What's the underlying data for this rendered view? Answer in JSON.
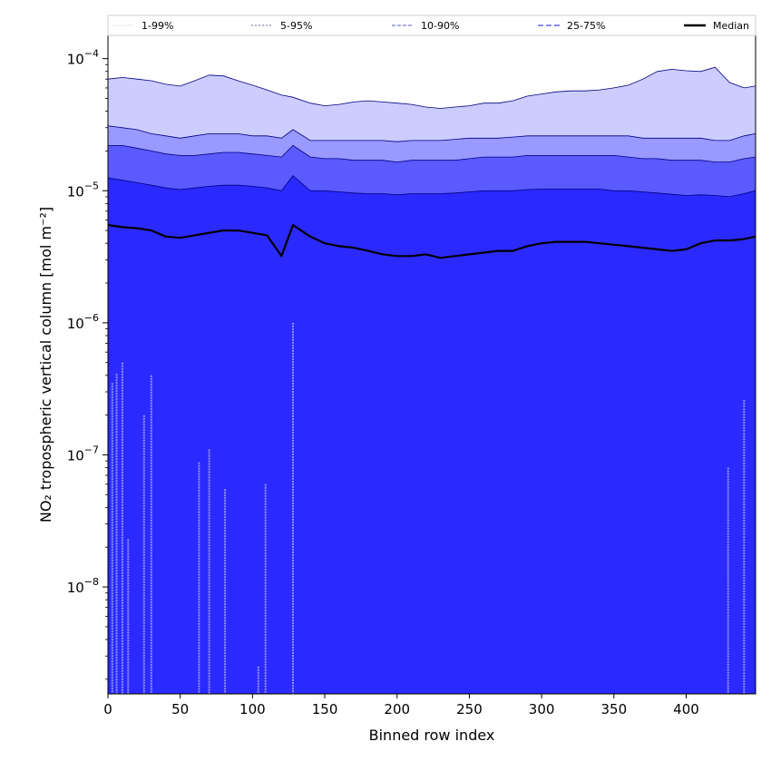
{
  "chart_data": {
    "type": "area",
    "title": "",
    "xlabel": "Binned row index",
    "ylabel": "NO₂ tropospheric vertical column [mol m⁻²]",
    "xlim": [
      0,
      448
    ],
    "ylim": [
      1.55e-09,
      0.00015
    ],
    "yscale": "log",
    "grid": false,
    "legend_position": "top",
    "x_ticks": [
      {
        "value": 0,
        "label": "0"
      },
      {
        "value": 50,
        "label": "50"
      },
      {
        "value": 100,
        "label": "100"
      },
      {
        "value": 150,
        "label": "150"
      },
      {
        "value": 200,
        "label": "200"
      },
      {
        "value": 250,
        "label": "250"
      },
      {
        "value": 300,
        "label": "300"
      },
      {
        "value": 350,
        "label": "350"
      },
      {
        "value": 400,
        "label": "400"
      }
    ],
    "y_ticks": [
      {
        "value": 1e-08,
        "base": "10",
        "exp": "−8"
      },
      {
        "value": 1e-07,
        "base": "10",
        "exp": "−7"
      },
      {
        "value": 1e-06,
        "base": "10",
        "exp": "−6"
      },
      {
        "value": 1e-05,
        "base": "10",
        "exp": "−5"
      },
      {
        "value": 0.0001,
        "base": "10",
        "exp": "−4"
      }
    ],
    "x": [
      0,
      10,
      20,
      30,
      40,
      50,
      60,
      70,
      80,
      90,
      100,
      110,
      120,
      128,
      140,
      150,
      160,
      170,
      180,
      190,
      200,
      210,
      220,
      230,
      240,
      250,
      260,
      270,
      280,
      290,
      300,
      310,
      320,
      330,
      340,
      350,
      360,
      370,
      380,
      390,
      400,
      410,
      420,
      430,
      440,
      448
    ],
    "series": [
      {
        "name": "1-99%",
        "kind": "band",
        "color": "#ccccff",
        "line_color": "#d0d0d0",
        "dash": "1,2",
        "lower": [
          1.55e-09,
          1.55e-09,
          1.55e-09,
          1.55e-09,
          1.55e-09,
          1.55e-09,
          1.55e-09,
          1.55e-09,
          1.55e-09,
          1.55e-09,
          1.55e-09,
          1.55e-09,
          1.55e-09,
          1.55e-09,
          1.55e-09,
          1.55e-09,
          1.55e-09,
          1.55e-09,
          1.55e-09,
          1.55e-09,
          1.55e-09,
          1.55e-09,
          1.55e-09,
          1.55e-09,
          1.55e-09,
          1.55e-09,
          1.55e-09,
          1.55e-09,
          1.55e-09,
          1.55e-09,
          1.55e-09,
          1.55e-09,
          1.55e-09,
          1.55e-09,
          1.55e-09,
          1.55e-09,
          1.55e-09,
          1.55e-09,
          1.55e-09,
          1.55e-09,
          1.55e-09,
          1.55e-09,
          1.55e-09,
          1.55e-09,
          1.55e-09,
          1.55e-09
        ],
        "upper": [
          7e-05,
          7.2e-05,
          7e-05,
          6.8e-05,
          6.4e-05,
          6.2e-05,
          6.8e-05,
          7.5e-05,
          7.4e-05,
          6.8e-05,
          6.3e-05,
          5.8e-05,
          5.3e-05,
          5.1e-05,
          4.6e-05,
          4.4e-05,
          4.5e-05,
          4.7e-05,
          4.8e-05,
          4.7e-05,
          4.6e-05,
          4.5e-05,
          4.3e-05,
          4.2e-05,
          4.3e-05,
          4.4e-05,
          4.6e-05,
          4.6e-05,
          4.8e-05,
          5.2e-05,
          5.4e-05,
          5.6e-05,
          5.7e-05,
          5.7e-05,
          5.8e-05,
          6e-05,
          6.3e-05,
          7e-05,
          8e-05,
          8.3e-05,
          8.1e-05,
          8e-05,
          8.6e-05,
          6.6e-05,
          6e-05,
          6.2e-05
        ]
      },
      {
        "name": "5-95%",
        "kind": "band",
        "color": "#9999ff",
        "line_color": "#8888bb",
        "dash": "2,2",
        "lower": [
          1.55e-09,
          1.55e-09,
          1.55e-09,
          1.55e-09,
          1.55e-09,
          1.55e-09,
          1.55e-09,
          1.55e-09,
          1.55e-09,
          1.55e-09,
          1.55e-09,
          1.55e-09,
          1.55e-09,
          1.55e-09,
          1.55e-09,
          1.55e-09,
          1.55e-09,
          1.55e-09,
          1.55e-09,
          1.55e-09,
          1.55e-09,
          1.55e-09,
          1.55e-09,
          1.55e-09,
          1.55e-09,
          1.55e-09,
          1.55e-09,
          1.55e-09,
          1.55e-09,
          1.55e-09,
          1.55e-09,
          1.55e-09,
          1.55e-09,
          1.55e-09,
          1.55e-09,
          1.55e-09,
          1.55e-09,
          1.55e-09,
          1.55e-09,
          1.55e-09,
          1.55e-09,
          1.55e-09,
          1.55e-09,
          1.55e-09,
          1.55e-09,
          1.55e-09
        ],
        "upper": [
          3.1e-05,
          3e-05,
          2.9e-05,
          2.7e-05,
          2.6e-05,
          2.5e-05,
          2.6e-05,
          2.7e-05,
          2.7e-05,
          2.7e-05,
          2.6e-05,
          2.6e-05,
          2.5e-05,
          2.9e-05,
          2.4e-05,
          2.4e-05,
          2.4e-05,
          2.4e-05,
          2.4e-05,
          2.4e-05,
          2.35e-05,
          2.4e-05,
          2.4e-05,
          2.4e-05,
          2.45e-05,
          2.5e-05,
          2.5e-05,
          2.5e-05,
          2.55e-05,
          2.6e-05,
          2.6e-05,
          2.6e-05,
          2.6e-05,
          2.6e-05,
          2.6e-05,
          2.6e-05,
          2.6e-05,
          2.5e-05,
          2.5e-05,
          2.5e-05,
          2.5e-05,
          2.5e-05,
          2.4e-05,
          2.4e-05,
          2.6e-05,
          2.7e-05
        ]
      },
      {
        "name": "10-90%",
        "kind": "band",
        "color": "#5a5aff",
        "line_color": "#7777dd",
        "dash": "4,2",
        "lower": [
          1.55e-09,
          1.55e-09,
          1.55e-09,
          1.55e-09,
          1.55e-09,
          1.55e-09,
          1.55e-09,
          1.55e-09,
          1.55e-09,
          1.55e-09,
          1.55e-09,
          1.55e-09,
          1.55e-09,
          1.55e-09,
          1.55e-09,
          1.55e-09,
          1.55e-09,
          1.55e-09,
          1.55e-09,
          1.55e-09,
          1.55e-09,
          1.55e-09,
          1.55e-09,
          1.55e-09,
          1.55e-09,
          1.55e-09,
          1.55e-09,
          1.55e-09,
          1.55e-09,
          1.55e-09,
          1.55e-09,
          1.55e-09,
          1.55e-09,
          1.55e-09,
          1.55e-09,
          1.55e-09,
          1.55e-09,
          1.55e-09,
          1.55e-09,
          1.55e-09,
          1.55e-09,
          1.55e-09,
          1.55e-09,
          1.55e-09,
          1.55e-09,
          1.55e-09
        ],
        "upper": [
          2.2e-05,
          2.2e-05,
          2.1e-05,
          2e-05,
          1.9e-05,
          1.85e-05,
          1.85e-05,
          1.9e-05,
          1.95e-05,
          1.95e-05,
          1.9e-05,
          1.85e-05,
          1.8e-05,
          2.2e-05,
          1.8e-05,
          1.75e-05,
          1.75e-05,
          1.7e-05,
          1.7e-05,
          1.7e-05,
          1.65e-05,
          1.7e-05,
          1.7e-05,
          1.7e-05,
          1.7e-05,
          1.75e-05,
          1.8e-05,
          1.8e-05,
          1.8e-05,
          1.85e-05,
          1.85e-05,
          1.85e-05,
          1.85e-05,
          1.85e-05,
          1.85e-05,
          1.85e-05,
          1.8e-05,
          1.75e-05,
          1.75e-05,
          1.7e-05,
          1.7e-05,
          1.7e-05,
          1.65e-05,
          1.65e-05,
          1.75e-05,
          1.8e-05
        ]
      },
      {
        "name": "25-75%",
        "kind": "band",
        "color": "#2a2aff",
        "line_color": "#4444ee",
        "dash": "6,3",
        "lower": [
          1.55e-09,
          1.55e-09,
          1.55e-09,
          1.55e-09,
          1.55e-09,
          1.55e-09,
          1.55e-09,
          1.55e-09,
          1.55e-09,
          1.55e-09,
          1.55e-09,
          1.55e-09,
          1.55e-09,
          1.55e-09,
          1.55e-09,
          1.55e-09,
          1.55e-09,
          1.55e-09,
          1.55e-09,
          1.55e-09,
          1.55e-09,
          1.55e-09,
          1.55e-09,
          1.55e-09,
          1.55e-09,
          1.55e-09,
          1.55e-09,
          1.55e-09,
          1.55e-09,
          1.55e-09,
          1.55e-09,
          1.55e-09,
          1.55e-09,
          1.55e-09,
          1.55e-09,
          1.55e-09,
          1.55e-09,
          1.55e-09,
          1.55e-09,
          1.55e-09,
          1.55e-09,
          1.55e-09,
          1.55e-09,
          1.55e-09,
          1.55e-09,
          1.55e-09
        ],
        "upper": [
          1.25e-05,
          1.2e-05,
          1.15e-05,
          1.1e-05,
          1.05e-05,
          1.02e-05,
          1.05e-05,
          1.08e-05,
          1.1e-05,
          1.1e-05,
          1.08e-05,
          1.05e-05,
          1e-05,
          1.3e-05,
          1e-05,
          1e-05,
          9.8e-06,
          9.6e-06,
          9.5e-06,
          9.5e-06,
          9.3e-06,
          9.5e-06,
          9.5e-06,
          9.5e-06,
          9.6e-06,
          9.8e-06,
          1e-05,
          1e-05,
          1e-05,
          1.02e-05,
          1.03e-05,
          1.03e-05,
          1.03e-05,
          1.03e-05,
          1.03e-05,
          1e-05,
          1e-05,
          9.8e-06,
          9.6e-06,
          9.4e-06,
          9.2e-06,
          9.3e-06,
          9.2e-06,
          9e-06,
          9.5e-06,
          1e-05
        ]
      },
      {
        "name": "Median",
        "kind": "line",
        "color": "#000000",
        "values": [
          5.5e-06,
          5.3e-06,
          5.2e-06,
          5e-06,
          4.5e-06,
          4.4e-06,
          4.6e-06,
          4.8e-06,
          5e-06,
          5e-06,
          4.8e-06,
          4.6e-06,
          3.2e-06,
          5.5e-06,
          4.5e-06,
          4e-06,
          3.8e-06,
          3.7e-06,
          3.5e-06,
          3.3e-06,
          3.2e-06,
          3.2e-06,
          3.3e-06,
          3.1e-06,
          3.2e-06,
          3.3e-06,
          3.4e-06,
          3.5e-06,
          3.5e-06,
          3.8e-06,
          4e-06,
          4.1e-06,
          4.1e-06,
          4.1e-06,
          4e-06,
          3.9e-06,
          3.8e-06,
          3.7e-06,
          3.6e-06,
          3.5e-06,
          3.6e-06,
          4e-06,
          4.2e-06,
          4.2e-06,
          4.3e-06,
          4.5e-06
        ]
      }
    ],
    "spikes": [
      {
        "x": 3,
        "top": 3.5e-07
      },
      {
        "x": 6,
        "top": 4.1e-07
      },
      {
        "x": 10,
        "top": 5e-07
      },
      {
        "x": 14,
        "top": 2.3e-08
      },
      {
        "x": 25,
        "top": 2e-07
      },
      {
        "x": 30,
        "top": 4e-07
      },
      {
        "x": 63,
        "top": 8.8e-08
      },
      {
        "x": 70,
        "top": 1.1e-07
      },
      {
        "x": 81,
        "top": 5.5e-08
      },
      {
        "x": 104,
        "top": 2.5e-09
      },
      {
        "x": 109,
        "top": 6e-08
      },
      {
        "x": 128,
        "top": 1e-06
      },
      {
        "x": 429,
        "top": 8e-08
      },
      {
        "x": 440,
        "top": 2.6e-07
      }
    ],
    "spike_color": "#8f8fff"
  }
}
